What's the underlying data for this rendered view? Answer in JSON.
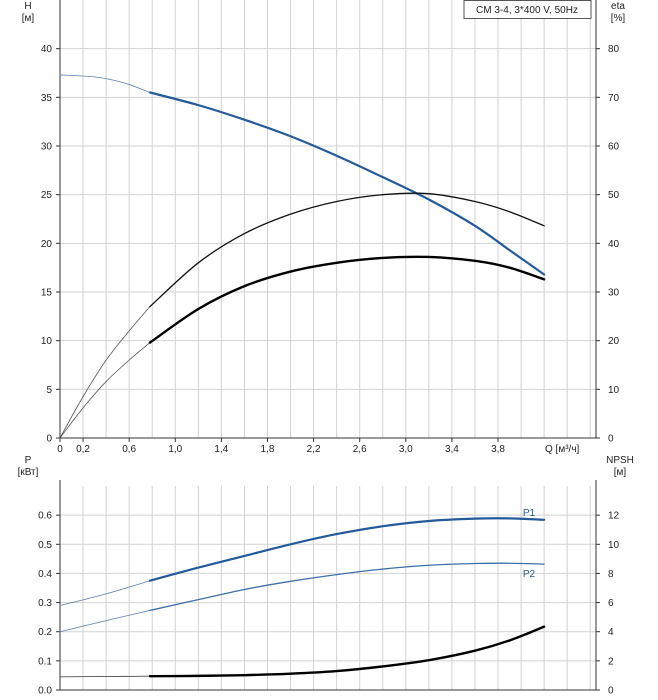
{
  "chart_data": [
    {
      "type": "line",
      "title": "CM 3-4, 3*400 V, 50Hz",
      "x_label": "Q [м³/ч]",
      "y_left_label_top": "H",
      "y_left_label_unit": "[м]",
      "y_right_label_top": "eta",
      "y_right_label_unit": "[%]",
      "x_ticks": [
        "0",
        "0,2",
        "0,6",
        "1,0",
        "1,4",
        "1,8",
        "2,2",
        "2,6",
        "3,0",
        "3,4",
        "3,8"
      ],
      "x_tick_values": [
        0,
        0.2,
        0.6,
        1.0,
        1.4,
        1.8,
        2.2,
        2.6,
        3.0,
        3.4,
        3.8
      ],
      "y_left_ticks": [
        0,
        5,
        10,
        15,
        20,
        25,
        30,
        35,
        40
      ],
      "y_right_ticks": [
        0,
        10,
        20,
        30,
        40,
        50,
        60,
        70,
        80
      ],
      "xlim": [
        0,
        4.65
      ],
      "ylim_left": [
        0,
        45
      ],
      "ylim_right": [
        0,
        90
      ],
      "series": [
        {
          "id": "H-extrapolated",
          "axis": "left",
          "color": "#5a7fae",
          "width": 0.8,
          "points": [
            [
              0,
              37.3
            ],
            [
              0.3,
              37.1
            ],
            [
              0.55,
              36.5
            ],
            [
              0.78,
              35.5
            ]
          ]
        },
        {
          "id": "H",
          "axis": "left",
          "color": "#245a9a",
          "width": 2.2,
          "points": [
            [
              0.78,
              35.5
            ],
            [
              1.2,
              34.2
            ],
            [
              1.6,
              32.7
            ],
            [
              2.0,
              31.0
            ],
            [
              2.4,
              29.0
            ],
            [
              2.8,
              26.8
            ],
            [
              3.2,
              24.5
            ],
            [
              3.6,
              21.8
            ],
            [
              3.9,
              19.3
            ],
            [
              4.2,
              16.8
            ]
          ]
        },
        {
          "id": "eta-motor-extrapolated",
          "axis": "right",
          "color": "#555555",
          "width": 0.8,
          "points": [
            [
              0,
              0
            ],
            [
              0.2,
              8.5
            ],
            [
              0.4,
              16
            ],
            [
              0.6,
              22
            ],
            [
              0.78,
              27
            ]
          ]
        },
        {
          "id": "eta-motor",
          "axis": "right",
          "color": "#111111",
          "width": 1.3,
          "points": [
            [
              0.78,
              27
            ],
            [
              1.2,
              36
            ],
            [
              1.6,
              42
            ],
            [
              2.0,
              46
            ],
            [
              2.4,
              48.6
            ],
            [
              2.8,
              50
            ],
            [
              3.2,
              50.2
            ],
            [
              3.6,
              48.6
            ],
            [
              3.9,
              46.5
            ],
            [
              4.2,
              43.6
            ]
          ]
        },
        {
          "id": "eta-pump-extrapolated",
          "axis": "right",
          "color": "#555555",
          "width": 0.8,
          "points": [
            [
              0,
              0
            ],
            [
              0.2,
              6.2
            ],
            [
              0.4,
              11.6
            ],
            [
              0.6,
              16
            ],
            [
              0.78,
              19.6
            ]
          ]
        },
        {
          "id": "eta-pump",
          "axis": "right",
          "color": "#000000",
          "width": 2.4,
          "points": [
            [
              0.78,
              19.6
            ],
            [
              1.2,
              26.5
            ],
            [
              1.6,
              31.2
            ],
            [
              2.0,
              34.2
            ],
            [
              2.4,
              36.0
            ],
            [
              2.8,
              37.0
            ],
            [
              3.2,
              37.2
            ],
            [
              3.6,
              36.4
            ],
            [
              3.9,
              35.0
            ],
            [
              4.2,
              32.6
            ]
          ]
        }
      ]
    },
    {
      "type": "line",
      "x_label": "",
      "y_left_label_top": "P",
      "y_left_label_unit": "[кВт]",
      "y_right_label_top": "NPSH",
      "y_right_label_unit": "[м]",
      "y_left_ticks": [
        "0.0",
        "0.1",
        "0.2",
        "0.3",
        "0.4",
        "0.5",
        "0.6"
      ],
      "y_left_tick_values": [
        0,
        0.1,
        0.2,
        0.3,
        0.4,
        0.5,
        0.6
      ],
      "y_right_ticks": [
        0,
        2,
        4,
        6,
        8,
        10,
        12
      ],
      "xlim": [
        0,
        4.65
      ],
      "ylim_left": [
        0,
        0.7
      ],
      "ylim_right": [
        0,
        14
      ],
      "series": [
        {
          "id": "P1-extrapolated",
          "axis": "left",
          "color": "#5a7fae",
          "width": 0.8,
          "points": [
            [
              0,
              0.29
            ],
            [
              0.4,
              0.33
            ],
            [
              0.78,
              0.375
            ]
          ]
        },
        {
          "id": "P1",
          "name": "P1",
          "axis": "left",
          "color": "#245a9a",
          "width": 2.2,
          "points": [
            [
              0.78,
              0.375
            ],
            [
              1.2,
              0.42
            ],
            [
              1.6,
              0.46
            ],
            [
              2.0,
              0.5
            ],
            [
              2.4,
              0.535
            ],
            [
              2.8,
              0.562
            ],
            [
              3.2,
              0.58
            ],
            [
              3.6,
              0.588
            ],
            [
              3.9,
              0.589
            ],
            [
              4.2,
              0.584
            ]
          ]
        },
        {
          "id": "P2-extrapolated",
          "axis": "left",
          "color": "#5a7fae",
          "width": 0.8,
          "points": [
            [
              0,
              0.2
            ],
            [
              0.4,
              0.238
            ],
            [
              0.78,
              0.273
            ]
          ]
        },
        {
          "id": "P2",
          "name": "P2",
          "axis": "left",
          "color": "#3f6fa8",
          "width": 1.3,
          "points": [
            [
              0.78,
              0.273
            ],
            [
              1.2,
              0.31
            ],
            [
              1.6,
              0.345
            ],
            [
              2.0,
              0.373
            ],
            [
              2.4,
              0.396
            ],
            [
              2.8,
              0.415
            ],
            [
              3.2,
              0.428
            ],
            [
              3.6,
              0.434
            ],
            [
              3.9,
              0.435
            ],
            [
              4.2,
              0.432
            ]
          ]
        },
        {
          "id": "NPSH-extrapolated",
          "axis": "right",
          "color": "#333333",
          "width": 0.8,
          "points": [
            [
              0,
              0.9
            ],
            [
              0.78,
              0.95
            ]
          ]
        },
        {
          "id": "NPSH",
          "axis": "right",
          "color": "#000000",
          "width": 2.4,
          "points": [
            [
              0.78,
              0.95
            ],
            [
              1.2,
              0.97
            ],
            [
              1.6,
              1.02
            ],
            [
              2.0,
              1.12
            ],
            [
              2.4,
              1.3
            ],
            [
              2.8,
              1.62
            ],
            [
              3.2,
              2.05
            ],
            [
              3.6,
              2.7
            ],
            [
              3.9,
              3.4
            ],
            [
              4.2,
              4.35
            ]
          ]
        }
      ]
    }
  ]
}
